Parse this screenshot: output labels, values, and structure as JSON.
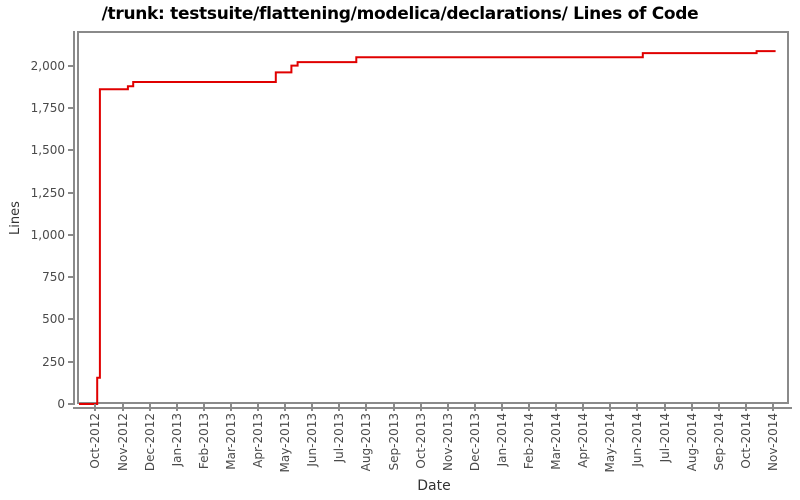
{
  "chart_data": {
    "type": "line",
    "step": true,
    "title": "/trunk: testsuite/flattening/modelica/declarations/ Lines of Code",
    "xlabel": "Date",
    "ylabel": "Lines",
    "grid": false,
    "legend": "none",
    "x_tick_labels": [
      "Oct-2012",
      "Nov-2012",
      "Dec-2012",
      "Jan-2013",
      "Feb-2013",
      "Mar-2013",
      "Apr-2013",
      "May-2013",
      "Jun-2013",
      "Jul-2013",
      "Aug-2013",
      "Sep-2013",
      "Oct-2013",
      "Nov-2013",
      "Dec-2013",
      "Jan-2014",
      "Feb-2014",
      "Mar-2014",
      "Apr-2014",
      "May-2014",
      "Jun-2014",
      "Jul-2014",
      "Aug-2014",
      "Sep-2014",
      "Oct-2014",
      "Nov-2014"
    ],
    "y_tick_values": [
      0,
      250,
      500,
      750,
      1000,
      1250,
      1500,
      1750,
      2000
    ],
    "x_domain": [
      "2012-09-13",
      "2014-11-19"
    ],
    "y_domain": [
      0,
      2195
    ],
    "axis_color": "#8a8a8a",
    "tick_label_color": "#4a4a4a",
    "series": [
      {
        "name": "Lines of Code",
        "color": "#e00000",
        "line_width": 2,
        "points": [
          [
            "2012-09-13",
            0
          ],
          [
            "2012-10-03",
            155
          ],
          [
            "2012-10-06",
            1862
          ],
          [
            "2012-11-07",
            1880
          ],
          [
            "2012-11-13",
            1905
          ],
          [
            "2013-04-21",
            1962
          ],
          [
            "2013-05-08",
            2002
          ],
          [
            "2013-05-15",
            2023
          ],
          [
            "2013-07-20",
            2052
          ],
          [
            "2014-06-07",
            2076
          ],
          [
            "2014-10-13",
            2088
          ]
        ],
        "line_end": "2014-11-04"
      }
    ]
  }
}
